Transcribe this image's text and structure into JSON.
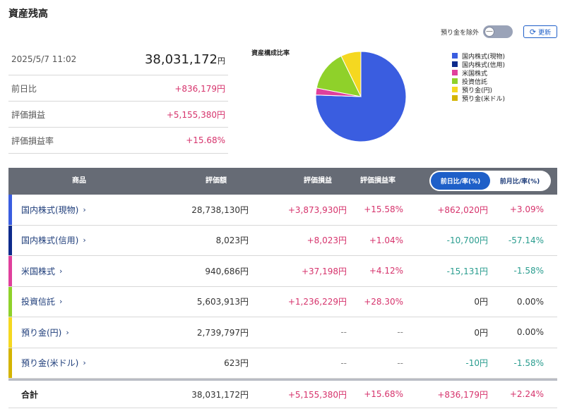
{
  "page": {
    "title": "資産残高"
  },
  "summary": {
    "datetime": "2025/5/7 11:02",
    "total": "38,031,172",
    "total_unit": "円",
    "rows": [
      {
        "label": "前日比",
        "value": "+836,179円"
      },
      {
        "label": "評価損益",
        "value": "+5,155,380円"
      },
      {
        "label": "評価損益率",
        "value": "+15.68%"
      }
    ]
  },
  "pie": {
    "title": "資産構成比率",
    "legend": [
      {
        "label": "国内株式(現物)",
        "color": "#3a5de0"
      },
      {
        "label": "国内株式(信用)",
        "color": "#0d2a8c"
      },
      {
        "label": "米国株式",
        "color": "#e0409c"
      },
      {
        "label": "投資信託",
        "color": "#8fd12a"
      },
      {
        "label": "預り金(円)",
        "color": "#f5d820"
      },
      {
        "label": "預り金(米ドル)",
        "color": "#d4b400"
      }
    ]
  },
  "chart_data": {
    "type": "pie",
    "title": "資産構成比率",
    "categories": [
      "国内株式(現物)",
      "国内株式(信用)",
      "米国株式",
      "投資信託",
      "預り金(円)",
      "預り金(米ドル)"
    ],
    "values": [
      28738130,
      8023,
      940686,
      5603913,
      2739797,
      623
    ],
    "colors": [
      "#3a5de0",
      "#0d2a8c",
      "#e0409c",
      "#8fd12a",
      "#f5d820",
      "#d4b400"
    ],
    "legend_position": "right"
  },
  "controls": {
    "exclude_label": "預り金を除外",
    "toggle_symbol": "—",
    "refresh_label": "更新",
    "refresh_icon": "⟳"
  },
  "table": {
    "headers": {
      "product": "商品",
      "value": "評価額",
      "gain": "評価損益",
      "gain_rate": "評価損益率"
    },
    "segment": {
      "active": "前日比/率(%)",
      "inactive": "前月比/率(%)"
    },
    "rows": [
      {
        "name": "国内株式(現物)",
        "color": "#3a5de0",
        "value": "28,738,130円",
        "gain": "+3,873,930円",
        "gain_rate": "+15.58%",
        "change": "+862,020円",
        "change_rate": "+3.09%"
      },
      {
        "name": "国内株式(信用)",
        "color": "#0d2a8c",
        "value": "8,023円",
        "gain": "+8,023円",
        "gain_rate": "+1.04%",
        "change": "-10,700円",
        "change_rate": "-57.14%"
      },
      {
        "name": "米国株式",
        "color": "#e0409c",
        "value": "940,686円",
        "gain": "+37,198円",
        "gain_rate": "+4.12%",
        "change": "-15,131円",
        "change_rate": "-1.58%"
      },
      {
        "name": "投資信託",
        "color": "#8fd12a",
        "value": "5,603,913円",
        "gain": "+1,236,229円",
        "gain_rate": "+28.30%",
        "change": "0円",
        "change_rate": "0.00%"
      },
      {
        "name": "預り金(円)",
        "color": "#f5d820",
        "value": "2,739,797円",
        "gain": "--",
        "gain_rate": "--",
        "change": "0円",
        "change_rate": "0.00%"
      },
      {
        "name": "預り金(米ドル)",
        "color": "#d4b400",
        "value": "623円",
        "gain": "--",
        "gain_rate": "--",
        "change": "-10円",
        "change_rate": "-1.58%"
      }
    ],
    "total": {
      "name": "合計",
      "value": "38,031,172円",
      "gain": "+5,155,380円",
      "gain_rate": "+15.68%",
      "change": "+836,179円",
      "change_rate": "+2.24%"
    },
    "chevron": "›"
  }
}
